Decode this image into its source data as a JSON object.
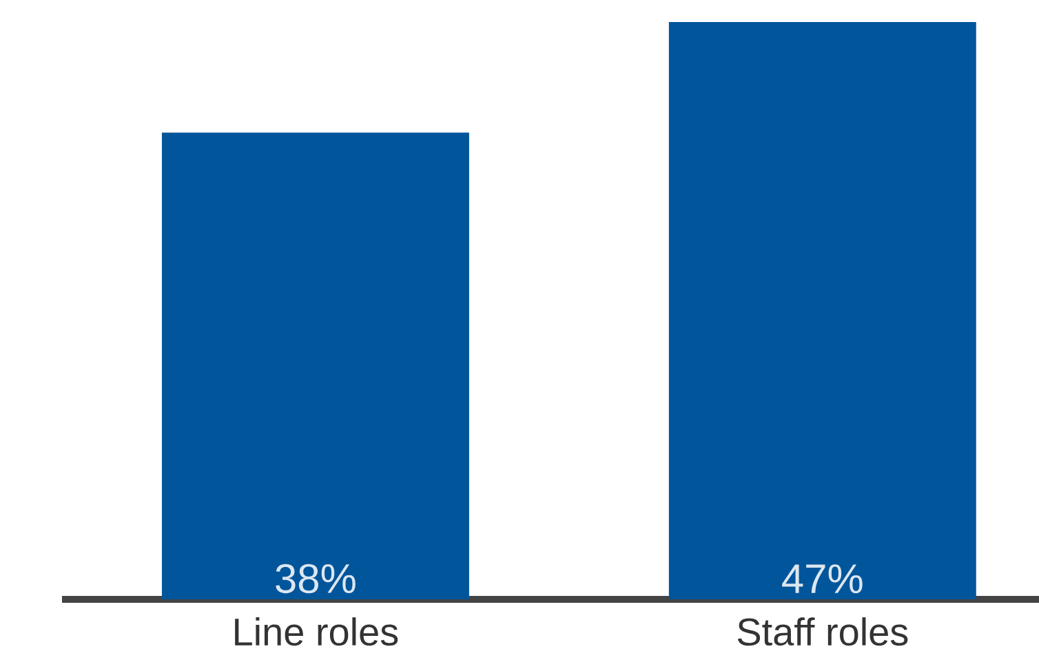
{
  "chart_data": {
    "type": "bar",
    "categories": [
      "Line roles",
      "Staff roles"
    ],
    "values": [
      38,
      47
    ],
    "value_labels": [
      "38%",
      "47%"
    ],
    "color": "#00559b"
  }
}
